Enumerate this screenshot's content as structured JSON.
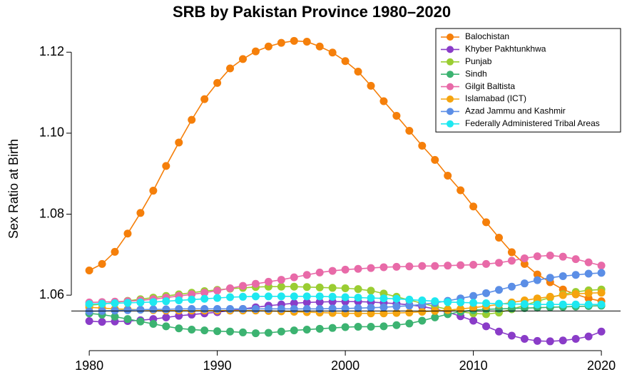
{
  "chart_data": {
    "type": "line",
    "title": "SRB by Pakistan Province 1980–2020",
    "y_label": "Sex Ratio at Birth",
    "x": [
      1980,
      1981,
      1982,
      1983,
      1984,
      1985,
      1986,
      1987,
      1988,
      1989,
      1990,
      1991,
      1992,
      1993,
      1994,
      1995,
      1996,
      1997,
      1998,
      1999,
      2000,
      2001,
      2002,
      2003,
      2004,
      2005,
      2006,
      2007,
      2008,
      2009,
      2010,
      2011,
      2012,
      2013,
      2014,
      2015,
      2016,
      2017,
      2018,
      2019,
      2020
    ],
    "xlim": [
      1978.6,
      2021.5
    ],
    "xticks": [
      1980,
      1990,
      2000,
      2010,
      2020
    ],
    "ylim": [
      1.0463,
      1.1262
    ],
    "yticks": [
      1.06,
      1.08,
      {
        "value": 1.1,
        "label": "1.10"
      },
      1.12
    ],
    "hline": 1.0561,
    "legend": "top-right",
    "series": [
      {
        "name": "Balochistan",
        "color": "#f57f0a",
        "values": [
          1.0661,
          1.0677,
          1.0707,
          1.0752,
          1.0803,
          1.0858,
          1.0919,
          1.0977,
          1.1033,
          1.1084,
          1.1124,
          1.116,
          1.1183,
          1.1202,
          1.1214,
          1.1223,
          1.1228,
          1.1226,
          1.1214,
          1.1199,
          1.1178,
          1.1152,
          1.1117,
          1.1079,
          1.1043,
          1.1006,
          1.0969,
          1.0934,
          1.0895,
          1.0859,
          1.0819,
          1.078,
          1.0742,
          1.0706,
          1.0677,
          1.0651,
          1.0632,
          1.0614,
          1.0602,
          1.0592,
          1.0585
        ]
      },
      {
        "name": "Khyber Pakhtunkhwa",
        "color": "#8a3cc8",
        "values": [
          1.0536,
          1.0534,
          1.0535,
          1.0536,
          1.0538,
          1.0541,
          1.0545,
          1.0549,
          1.0552,
          1.0555,
          1.0558,
          1.0562,
          1.0566,
          1.057,
          1.0574,
          1.0577,
          1.058,
          1.0582,
          1.0583,
          1.0584,
          1.0584,
          1.0584,
          1.0583,
          1.0581,
          1.0579,
          1.0576,
          1.0572,
          1.0566,
          1.0558,
          1.0548,
          1.0537,
          1.0523,
          1.051,
          1.05,
          1.0492,
          1.0487,
          1.0486,
          1.0488,
          1.0492,
          1.0498,
          1.051
        ]
      },
      {
        "name": "Punjab",
        "color": "#9acd32",
        "values": [
          1.0575,
          1.0578,
          1.0582,
          1.0586,
          1.059,
          1.0594,
          1.0598,
          1.0602,
          1.0606,
          1.061,
          1.0613,
          1.0616,
          1.0618,
          1.062,
          1.0621,
          1.0621,
          1.0621,
          1.062,
          1.0619,
          1.0618,
          1.0617,
          1.0615,
          1.0611,
          1.0604,
          1.0596,
          1.0588,
          1.058,
          1.0572,
          1.0565,
          1.0559,
          1.0555,
          1.0553,
          1.0557,
          1.0565,
          1.0575,
          1.0585,
          1.0594,
          1.0602,
          1.0608,
          1.0612,
          1.0614
        ]
      },
      {
        "name": "Sindh",
        "color": "#3cb371",
        "values": [
          1.0555,
          1.0552,
          1.0547,
          1.0541,
          1.0535,
          1.0529,
          1.0523,
          1.0518,
          1.0515,
          1.0513,
          1.0511,
          1.051,
          1.0508,
          1.0506,
          1.0507,
          1.051,
          1.0513,
          1.0515,
          1.0517,
          1.0519,
          1.0521,
          1.0522,
          1.0522,
          1.0523,
          1.0526,
          1.053,
          1.0537,
          1.0545,
          1.0553,
          1.0559,
          1.0563,
          1.0565,
          1.0566,
          1.0567,
          1.0568,
          1.0569,
          1.057,
          1.0571,
          1.0572,
          1.0573,
          1.0574
        ]
      },
      {
        "name": "Gilgit Baltista",
        "color": "#e86aa8",
        "values": [
          1.0582,
          1.0583,
          1.0584,
          1.0585,
          1.0587,
          1.059,
          1.0594,
          1.0598,
          1.0602,
          1.0606,
          1.0611,
          1.0617,
          1.0623,
          1.0628,
          1.0633,
          1.0638,
          1.0644,
          1.065,
          1.0656,
          1.066,
          1.0663,
          1.0665,
          1.0667,
          1.0669,
          1.067,
          1.0671,
          1.0672,
          1.0672,
          1.0673,
          1.0674,
          1.0675,
          1.0677,
          1.068,
          1.0685,
          1.0691,
          1.0696,
          1.0698,
          1.0695,
          1.0689,
          1.0681,
          1.0673
        ]
      },
      {
        "name": "Islamabad (ICT)",
        "color": "#f5a40f",
        "values": [
          1.057,
          1.0568,
          1.0566,
          1.0565,
          1.0564,
          1.0563,
          1.0562,
          1.0562,
          1.0562,
          1.0562,
          1.0562,
          1.0562,
          1.0562,
          1.0562,
          1.0561,
          1.056,
          1.0559,
          1.0558,
          1.0557,
          1.0556,
          1.0555,
          1.0555,
          1.0555,
          1.0555,
          1.0556,
          1.0557,
          1.0559,
          1.0561,
          1.0563,
          1.0566,
          1.0569,
          1.0573,
          1.0577,
          1.0582,
          1.0587,
          1.0592,
          1.0596,
          1.06,
          1.0603,
          1.0605,
          1.0606
        ]
      },
      {
        "name": "Azad Jammu and Kashmir",
        "color": "#5b8ee6",
        "values": [
          1.056,
          1.0561,
          1.0562,
          1.0563,
          1.0564,
          1.0565,
          1.0565,
          1.0566,
          1.0566,
          1.0566,
          1.0566,
          1.0566,
          1.0566,
          1.0566,
          1.0566,
          1.0566,
          1.0566,
          1.0566,
          1.0566,
          1.0567,
          1.0567,
          1.0568,
          1.0569,
          1.057,
          1.0572,
          1.0574,
          1.0577,
          1.0581,
          1.0586,
          1.0592,
          1.0598,
          1.0605,
          1.0613,
          1.0621,
          1.0629,
          1.0637,
          1.0643,
          1.0647,
          1.065,
          1.0653,
          1.0655
        ]
      },
      {
        "name": "Federally Administered Tribal Areas",
        "color": "#1ee8f0",
        "values": [
          1.0578,
          1.0579,
          1.058,
          1.0581,
          1.0582,
          1.0583,
          1.0585,
          1.0587,
          1.0589,
          1.0591,
          1.0593,
          1.0595,
          1.0596,
          1.0597,
          1.0597,
          1.0597,
          1.0597,
          1.0597,
          1.0597,
          1.0596,
          1.0595,
          1.0594,
          1.0593,
          1.0592,
          1.0591,
          1.0589,
          1.0587,
          1.0585,
          1.0583,
          1.0582,
          1.0581,
          1.058,
          1.0579,
          1.0578,
          1.0578,
          1.0577,
          1.0577,
          1.0577,
          1.0577,
          1.0577,
          1.0577
        ]
      }
    ]
  }
}
